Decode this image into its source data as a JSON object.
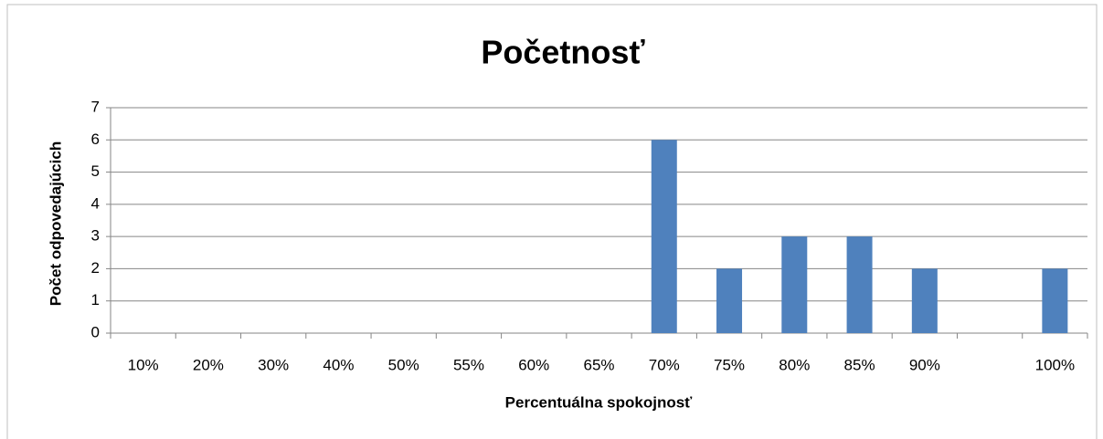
{
  "chart_data": {
    "type": "bar",
    "title": "Početnosť",
    "x_label": "Percentuálna spokojnosť",
    "y_label": "Počet odpovedajúcich",
    "categories": [
      "10%",
      "20%",
      "30%",
      "40%",
      "50%",
      "55%",
      "60%",
      "65%",
      "70%",
      "75%",
      "80%",
      "85%",
      "90%",
      null,
      "100%"
    ],
    "values": [
      0,
      0,
      0,
      0,
      0,
      0,
      0,
      0,
      6,
      2,
      3,
      3,
      2,
      0,
      2
    ],
    "color": "#4f81bd",
    "ylim": [
      0,
      7
    ],
    "yticks": [
      0,
      1,
      2,
      3,
      4,
      5,
      6,
      7
    ],
    "grid": true
  }
}
